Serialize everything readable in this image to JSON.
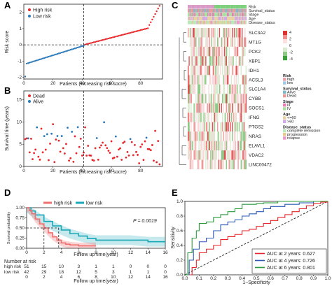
{
  "panel_labels": [
    "A",
    "B",
    "C",
    "D",
    "E"
  ],
  "chart_data": [
    {
      "panel": "A",
      "type": "scatter",
      "xlabel": "Patients (increasing risk socre)",
      "ylabel": "Risk score",
      "xlim": [
        0,
        95
      ],
      "ylim": [
        -2.1,
        2.5
      ],
      "xticks": [
        "0",
        "20",
        "40",
        "60",
        "80"
      ],
      "yticks": [
        "-2",
        "-1",
        "0",
        "1",
        "2"
      ],
      "cutoff_x": 41,
      "cutoff_y": 0,
      "legend": [
        "High risk",
        "Low risk"
      ],
      "colors": {
        "high": "#e8262a",
        "low": "#2a78b8"
      },
      "series": [
        {
          "name": "Low risk",
          "start": 1,
          "end": 41
        },
        {
          "name": "High risk",
          "start": 42,
          "end": 93
        }
      ]
    },
    {
      "panel": "B",
      "type": "scatter",
      "xlabel": "Patients (increasing risk socre)",
      "ylabel": "Survival time (years)",
      "xlim": [
        0,
        95
      ],
      "ylim": [
        0,
        17
      ],
      "xticks": [
        "0",
        "20",
        "40",
        "60",
        "80"
      ],
      "yticks": [
        "0",
        "5",
        "10",
        "15"
      ],
      "cutoff_x": 41,
      "legend": [
        "Dead",
        "Alive"
      ],
      "colors": {
        "dead": "#e8262a",
        "alive": "#2a78b8"
      }
    },
    {
      "panel": "C",
      "type": "heatmap",
      "genes": [
        "SLC3A2",
        "MT1G",
        "PCK2",
        "XBP1",
        "IDH1",
        "ACSL3",
        "SLC1A4",
        "CYBB",
        "SOCS1",
        "IFNG",
        "PTGS2",
        "NRAS",
        "ELAVL1",
        "VDAC2",
        "LINC00472"
      ],
      "annotation_rows": [
        "Risk",
        "Survival_status",
        "Stage",
        "Age",
        "Disease_status"
      ],
      "scale_ticks": [
        "4",
        "2",
        "0",
        "-2",
        "-4"
      ],
      "legend_groups": [
        {
          "title": "Risk",
          "items": [
            {
              "label": "high",
              "color": "#e8a0a8"
            },
            {
              "label": "low",
              "color": "#a0c8e8"
            }
          ]
        },
        {
          "title": "Survival_status",
          "items": [
            {
              "label": "Alive",
              "color": "#7fb8c8"
            },
            {
              "label": "Dead",
              "color": "#e89a9a"
            }
          ]
        },
        {
          "title": "Stage",
          "items": [
            {
              "label": "III",
              "color": "#e87fb8"
            },
            {
              "label": "IV",
              "color": "#a8e0a0"
            }
          ]
        },
        {
          "title": "Age",
          "items": [
            {
              "label": "<=60",
              "color": "#e8d0a0"
            },
            {
              "label": ">60",
              "color": "#d0a8e8"
            }
          ]
        },
        {
          "title": "Disease_status",
          "items": [
            {
              "label": "complete remission",
              "color": "#b8e8b8"
            },
            {
              "label": "progression",
              "color": "#e8c890"
            },
            {
              "label": "relapse",
              "color": "#e89ac8"
            }
          ]
        }
      ]
    },
    {
      "panel": "D",
      "type": "line",
      "legend": [
        "high risk",
        "low risk"
      ],
      "pvalue": "P = 0.0019",
      "xlabel": "Follow up time(year)",
      "ylabel": "Survival probability",
      "xlim": [
        0,
        16
      ],
      "ylim": [
        0,
        1
      ],
      "xticks": [
        "0",
        "2",
        "4",
        "6",
        "8",
        "10",
        "12",
        "14",
        "16"
      ],
      "yticks": [
        "0.00",
        "0.25",
        "0.50",
        "0.75",
        "1.00"
      ],
      "colors": {
        "high": "#f07070",
        "low": "#1aa8b8"
      },
      "series": [
        {
          "name": "high risk",
          "x": [
            0,
            0.3,
            0.6,
            1,
            1.5,
            2,
            2.5,
            3,
            3.5,
            4,
            4.5,
            5,
            6,
            7,
            8
          ],
          "y": [
            1,
            0.93,
            0.85,
            0.72,
            0.6,
            0.5,
            0.38,
            0.28,
            0.2,
            0.13,
            0.1,
            0.08,
            0.06,
            0.06,
            0.06
          ]
        },
        {
          "name": "low risk",
          "x": [
            0,
            0.5,
            1,
            2,
            3,
            4,
            5,
            6,
            7,
            8,
            10,
            12,
            14,
            16
          ],
          "y": [
            1,
            0.92,
            0.82,
            0.66,
            0.55,
            0.45,
            0.36,
            0.3,
            0.24,
            0.2,
            0.2,
            0.2,
            0.16,
            0.16
          ]
        }
      ],
      "risk_table": {
        "title": "Number at risk",
        "rows": [
          {
            "label": "high risk",
            "values": [
              "51",
              "15",
              "10",
              "3",
              "1",
              "1",
              "0",
              "0",
              "0"
            ]
          },
          {
            "label": "low risk",
            "values": [
              "42",
              "29",
              "18",
              "12",
              "5",
              "3",
              "1",
              "1",
              "0"
            ]
          }
        ],
        "xlabel": "Follow up time(year)"
      }
    },
    {
      "panel": "E",
      "type": "line",
      "xlabel": "1−Specificity",
      "ylabel": "Sensitivity",
      "xlim": [
        0,
        1
      ],
      "ylim": [
        0,
        1
      ],
      "xticks": [
        "0.0",
        "0.1",
        "0.2",
        "0.3",
        "0.4",
        "0.5",
        "0.6",
        "0.7",
        "0.8",
        "0.9",
        "1.0"
      ],
      "yticks": [
        "0.0",
        "0.2",
        "0.4",
        "0.6",
        "0.8",
        "1.0"
      ],
      "legend": [
        "AUC at 2 years: 0.627",
        "AUC at 4 years: 0.726",
        "AUC at 6 years: 0.801"
      ],
      "colors": [
        "#e8262a",
        "#2a5ab8",
        "#2a9a3a"
      ],
      "series": [
        {
          "name": "AUC at 2 years: 0.627",
          "x": [
            0,
            0.05,
            0.08,
            0.1,
            0.15,
            0.2,
            0.25,
            0.3,
            0.35,
            0.4,
            0.45,
            0.5,
            0.55,
            0.6,
            0.65,
            0.7,
            0.75,
            0.8,
            0.85,
            0.9,
            0.95,
            1.0
          ],
          "y": [
            0,
            0.1,
            0.2,
            0.3,
            0.35,
            0.4,
            0.48,
            0.52,
            0.55,
            0.6,
            0.62,
            0.66,
            0.7,
            0.74,
            0.78,
            0.82,
            0.86,
            0.9,
            0.94,
            0.97,
            0.99,
            1.0
          ]
        },
        {
          "name": "AUC at 4 years: 0.726",
          "x": [
            0,
            0.03,
            0.06,
            0.1,
            0.15,
            0.2,
            0.25,
            0.3,
            0.35,
            0.4,
            0.45,
            0.5,
            0.55,
            0.6,
            0.7,
            0.8,
            0.9,
            1.0
          ],
          "y": [
            0,
            0.2,
            0.35,
            0.45,
            0.5,
            0.6,
            0.68,
            0.72,
            0.75,
            0.8,
            0.83,
            0.86,
            0.9,
            0.93,
            0.96,
            0.98,
            1.0,
            1.0
          ]
        },
        {
          "name": "AUC at 6 years: 0.801",
          "x": [
            0,
            0.02,
            0.05,
            0.08,
            0.1,
            0.15,
            0.2,
            0.25,
            0.3,
            0.35,
            0.4,
            0.5,
            0.55,
            0.6,
            0.65,
            0.7,
            0.8,
            0.9,
            1.0
          ],
          "y": [
            0,
            0.3,
            0.5,
            0.6,
            0.7,
            0.72,
            0.78,
            0.82,
            0.86,
            0.9,
            0.96,
            0.97,
            0.98,
            0.98,
            1.0,
            1.0,
            1.0,
            1.0,
            1.0
          ]
        }
      ]
    }
  ]
}
